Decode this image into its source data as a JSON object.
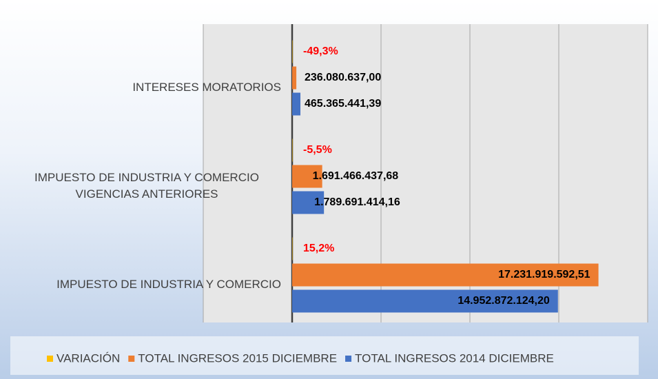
{
  "chart_data": {
    "type": "bar",
    "orientation": "horizontal",
    "categories": [
      "INTERESES MORATORIOS",
      "IMPUESTO DE INDUSTRIA Y COMERCIO VIGENCIAS ANTERIORES",
      "IMPUESTO DE INDUSTRIA Y COMERCIO"
    ],
    "series": [
      {
        "name": "VARIACIÓN",
        "color": "#ffc000",
        "values": [
          -49.3,
          -5.5,
          15.2
        ],
        "value_labels": [
          "-49,3%",
          "-5,5%",
          "15,2%"
        ]
      },
      {
        "name": "TOTAL INGRESOS 2015 DICIEMBRE",
        "color": "#ed7d31",
        "values": [
          236080637.0,
          1691466437.68,
          17231919592.51
        ],
        "value_labels": [
          "236.080.637,00",
          "1.691.466.437,68",
          "17.231.919.592,51"
        ]
      },
      {
        "name": "TOTAL INGRESOS 2014 DICIEMBRE",
        "color": "#4472c4",
        "values": [
          465365441.39,
          1789691414.16,
          14952872124.2
        ],
        "value_labels": [
          "465.365.441,39",
          "1.789.691.414,16",
          "14.952.872.124,20"
        ]
      }
    ],
    "xlim": [
      -5000000000,
      20000000000
    ],
    "xticks": [
      -5000000000,
      0,
      5000000000,
      10000000000,
      15000000000,
      20000000000
    ],
    "grid": true,
    "legend": "bottom"
  }
}
